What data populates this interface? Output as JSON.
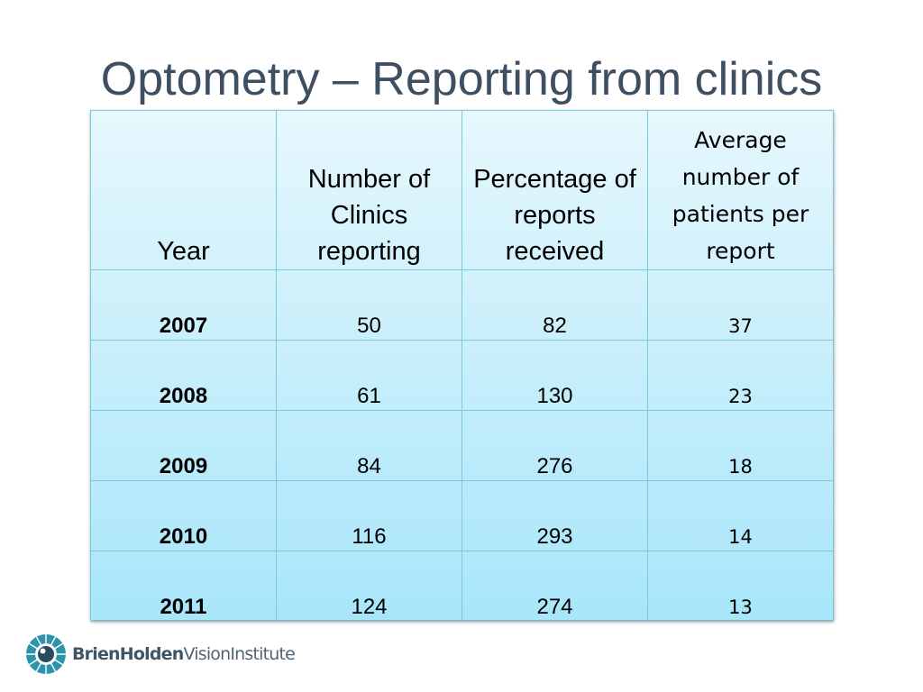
{
  "title": "Optometry – Reporting from clinics",
  "table": {
    "headers": [
      "Year",
      "Number of Clinics reporting",
      "Percentage of reports received",
      "Average number of patients per report"
    ],
    "rows": [
      {
        "year": "2007",
        "clinics": "50",
        "percentage": "82",
        "average": "37"
      },
      {
        "year": "2008",
        "clinics": "61",
        "percentage": "130",
        "average": "23"
      },
      {
        "year": "2009",
        "clinics": "84",
        "percentage": "276",
        "average": "18"
      },
      {
        "year": "2010",
        "clinics": "116",
        "percentage": "293",
        "average": "14"
      },
      {
        "year": "2011",
        "clinics": "124",
        "percentage": "274",
        "average": "13"
      }
    ]
  },
  "logo": {
    "icon": "eye-logo-icon",
    "name_bold": "BrienHolden",
    "name_regular": "VisionInstitute"
  },
  "colors": {
    "title": "#3d4f61",
    "table_top": "#e6f8fd",
    "table_bottom": "#a8e6fa",
    "grid": "#7ec8da",
    "logo": "#2e93ad"
  }
}
